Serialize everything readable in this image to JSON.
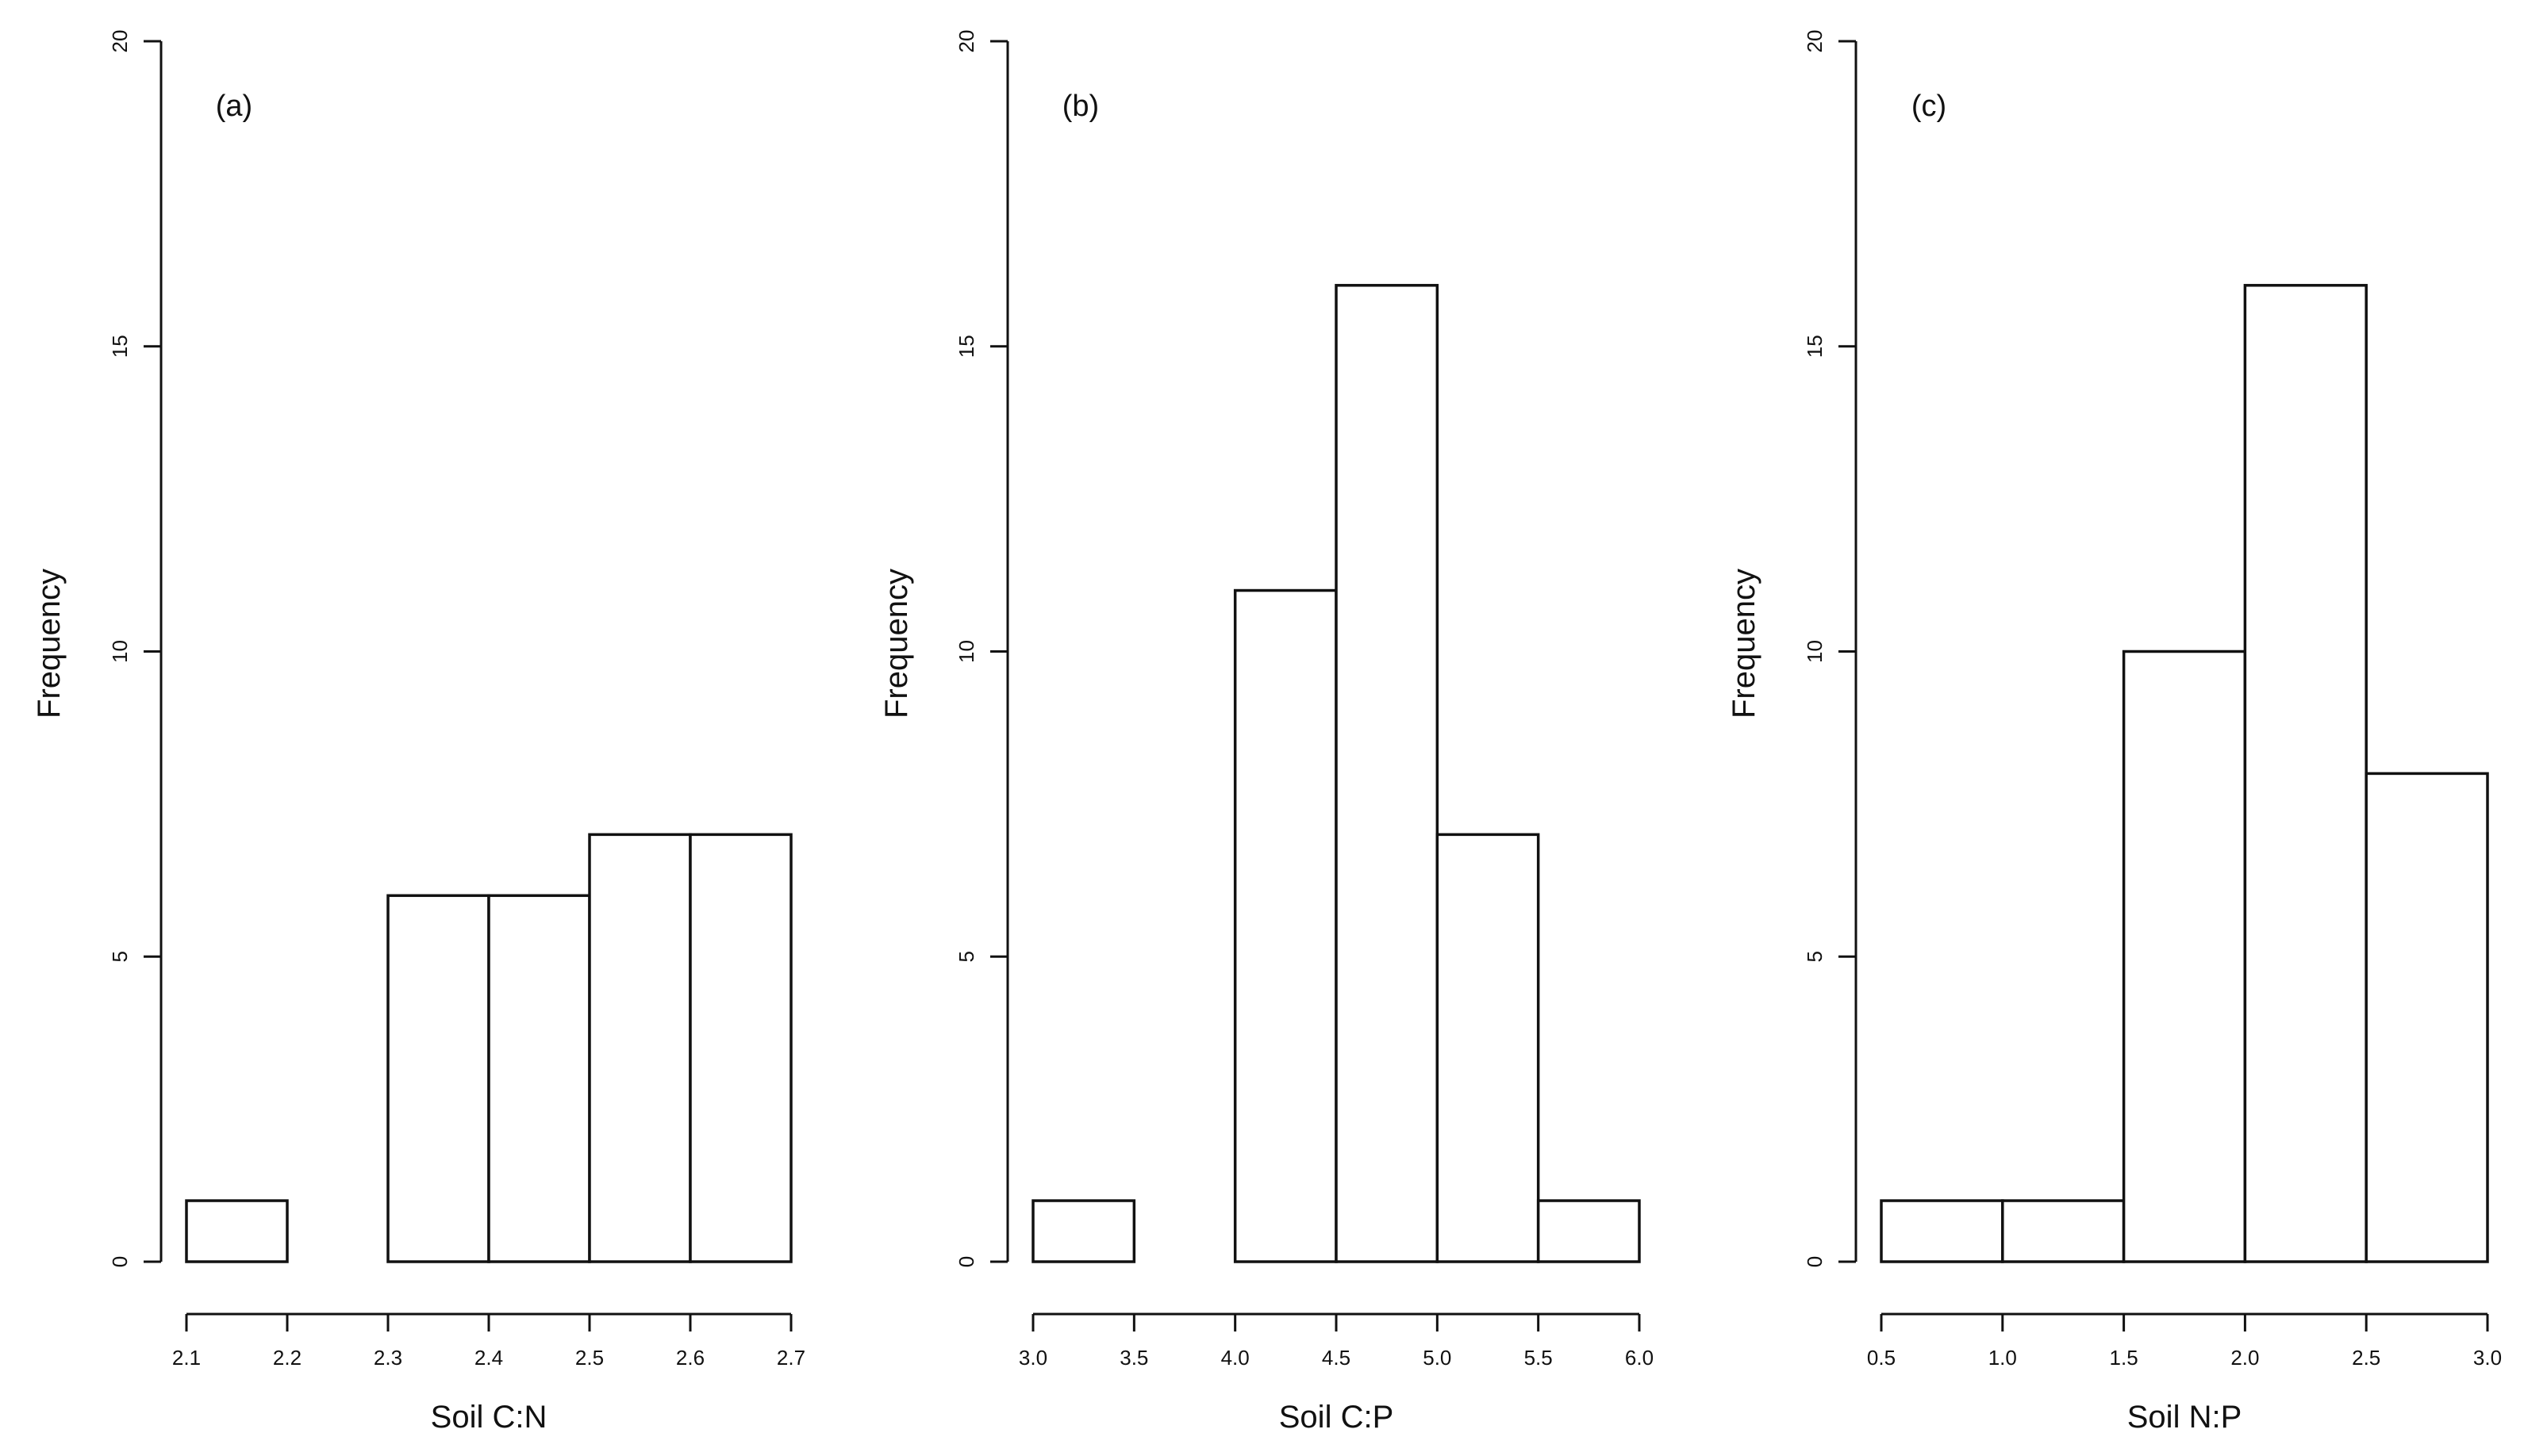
{
  "chart_data": [
    {
      "type": "bar",
      "panel_label": "(a)",
      "xlabel": "Soil C:N",
      "ylabel": "Frequency",
      "ylim": [
        0,
        20
      ],
      "yticks": [
        "0",
        "5",
        "10",
        "15",
        "20"
      ],
      "xlim": [
        2.1,
        2.7
      ],
      "xticks": [
        "2.1",
        "2.2",
        "2.3",
        "2.4",
        "2.5",
        "2.6",
        "2.7"
      ],
      "bins": [
        [
          2.1,
          2.2
        ],
        [
          2.2,
          2.3
        ],
        [
          2.3,
          2.4
        ],
        [
          2.4,
          2.5
        ],
        [
          2.5,
          2.6
        ],
        [
          2.6,
          2.7
        ]
      ],
      "values": [
        1,
        0,
        6,
        6,
        7,
        7
      ]
    },
    {
      "type": "bar",
      "panel_label": "(b)",
      "xlabel": "Soil C:P",
      "ylabel": "Frequency",
      "ylim": [
        0,
        20
      ],
      "yticks": [
        "0",
        "5",
        "10",
        "15",
        "20"
      ],
      "xlim": [
        3.0,
        6.0
      ],
      "xticks": [
        "3.0",
        "3.5",
        "4.0",
        "4.5",
        "5.0",
        "5.5",
        "6.0"
      ],
      "bins": [
        [
          3.0,
          3.5
        ],
        [
          3.5,
          4.0
        ],
        [
          4.0,
          4.5
        ],
        [
          4.5,
          5.0
        ],
        [
          5.0,
          5.5
        ],
        [
          5.5,
          6.0
        ]
      ],
      "values": [
        1,
        0,
        11,
        16,
        7,
        1
      ]
    },
    {
      "type": "bar",
      "panel_label": "(c)",
      "xlabel": "Soil N:P",
      "ylabel": "Frequency",
      "ylim": [
        0,
        20
      ],
      "yticks": [
        "0",
        "5",
        "10",
        "15",
        "20"
      ],
      "xlim": [
        0.5,
        3.0
      ],
      "xticks": [
        "0.5",
        "1.0",
        "1.5",
        "2.0",
        "2.5",
        "3.0"
      ],
      "bins": [
        [
          0.5,
          1.0
        ],
        [
          1.0,
          1.5
        ],
        [
          1.5,
          2.0
        ],
        [
          2.0,
          2.5
        ],
        [
          2.5,
          3.0
        ]
      ],
      "values": [
        1,
        1,
        10,
        16,
        8
      ]
    }
  ]
}
